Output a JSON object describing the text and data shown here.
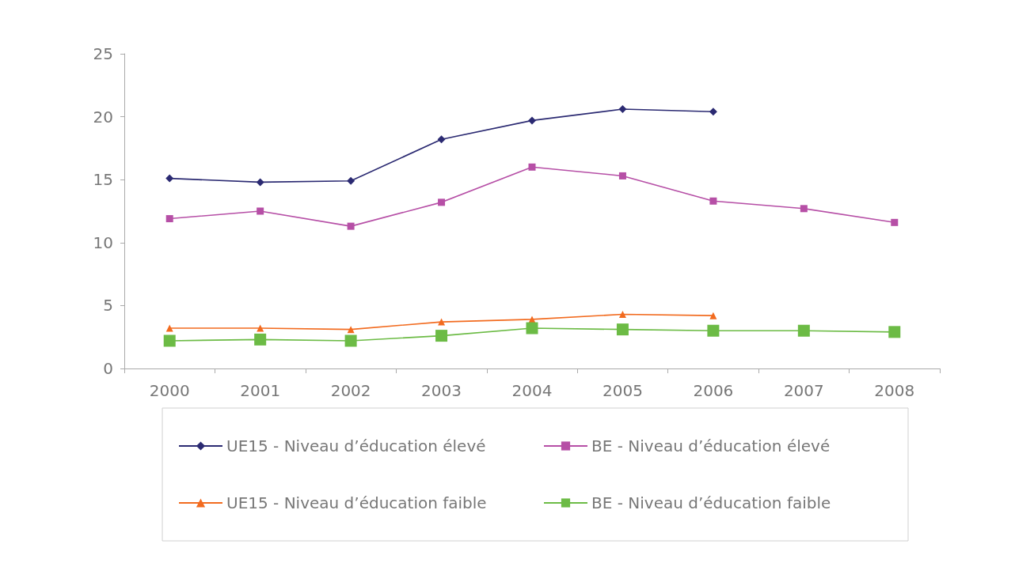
{
  "chart_data": {
    "type": "line",
    "categories": [
      "2000",
      "2001",
      "2002",
      "2003",
      "2004",
      "2005",
      "2006",
      "2007",
      "2008"
    ],
    "series": [
      {
        "name": "UE15 - Niveau d’éducation élevé",
        "color": "#2b2a72",
        "marker": "diamond",
        "values": [
          15.1,
          14.8,
          14.9,
          18.2,
          19.7,
          20.6,
          20.4,
          null,
          null
        ]
      },
      {
        "name": "BE - Niveau d’éducation élevé",
        "color": "#b64fa6",
        "marker": "square",
        "values": [
          11.9,
          12.5,
          11.3,
          13.2,
          16.0,
          15.3,
          13.3,
          12.7,
          11.6
        ]
      },
      {
        "name": "UE15 - Niveau d’éducation faible",
        "color": "#f26b1f",
        "marker": "triangle",
        "values": [
          3.2,
          3.2,
          3.1,
          3.7,
          3.9,
          4.3,
          4.2,
          null,
          null
        ]
      },
      {
        "name": "BE - Niveau d’éducation faible",
        "color": "#6cbb45",
        "marker": "square",
        "values": [
          2.2,
          2.3,
          2.2,
          2.6,
          3.2,
          3.1,
          3.0,
          3.0,
          2.9
        ]
      }
    ],
    "ylim": [
      0,
      25
    ],
    "yticks": [
      0,
      5,
      10,
      15,
      20,
      25
    ],
    "grid": false,
    "legend": "bottom"
  }
}
